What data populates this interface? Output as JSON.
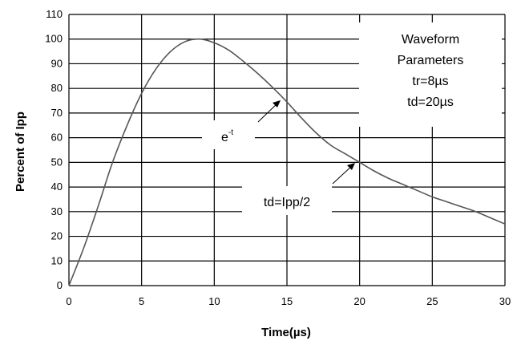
{
  "chart_data": {
    "type": "line",
    "xlabel": "Time(µs)",
    "ylabel": "Percent of Ipp",
    "xlim": [
      0,
      30
    ],
    "ylim": [
      0,
      110
    ],
    "x_ticks": [
      "0",
      "5",
      "10",
      "15",
      "20",
      "25",
      "30"
    ],
    "y_ticks": [
      "0",
      "10",
      "20",
      "30",
      "40",
      "50",
      "60",
      "70",
      "80",
      "90",
      "100",
      "110"
    ],
    "grid": true,
    "series": [
      {
        "x": [
          0,
          1,
          2,
          3,
          4,
          5,
          6,
          7,
          8,
          9,
          10,
          11,
          12,
          13,
          14,
          15,
          16,
          17,
          18,
          19,
          20,
          21,
          22,
          23,
          24,
          25,
          26,
          27,
          28,
          29,
          30
        ],
        "y": [
          0,
          15,
          32,
          50,
          65,
          78,
          88,
          95,
          99,
          100,
          98.5,
          95.5,
          91,
          86,
          80.5,
          74.5,
          68,
          62,
          57,
          53.5,
          50,
          46.5,
          43.5,
          41,
          38.5,
          36,
          34,
          32,
          30,
          27.5,
          25
        ]
      }
    ],
    "annotations": {
      "params_title_1": "Waveform",
      "params_title_2": "Parameters",
      "tr": "tr=8µs",
      "td": "td=20µs",
      "decay_base": "e",
      "decay_exp": "-t",
      "td_def": "td=Ipp/2"
    }
  }
}
